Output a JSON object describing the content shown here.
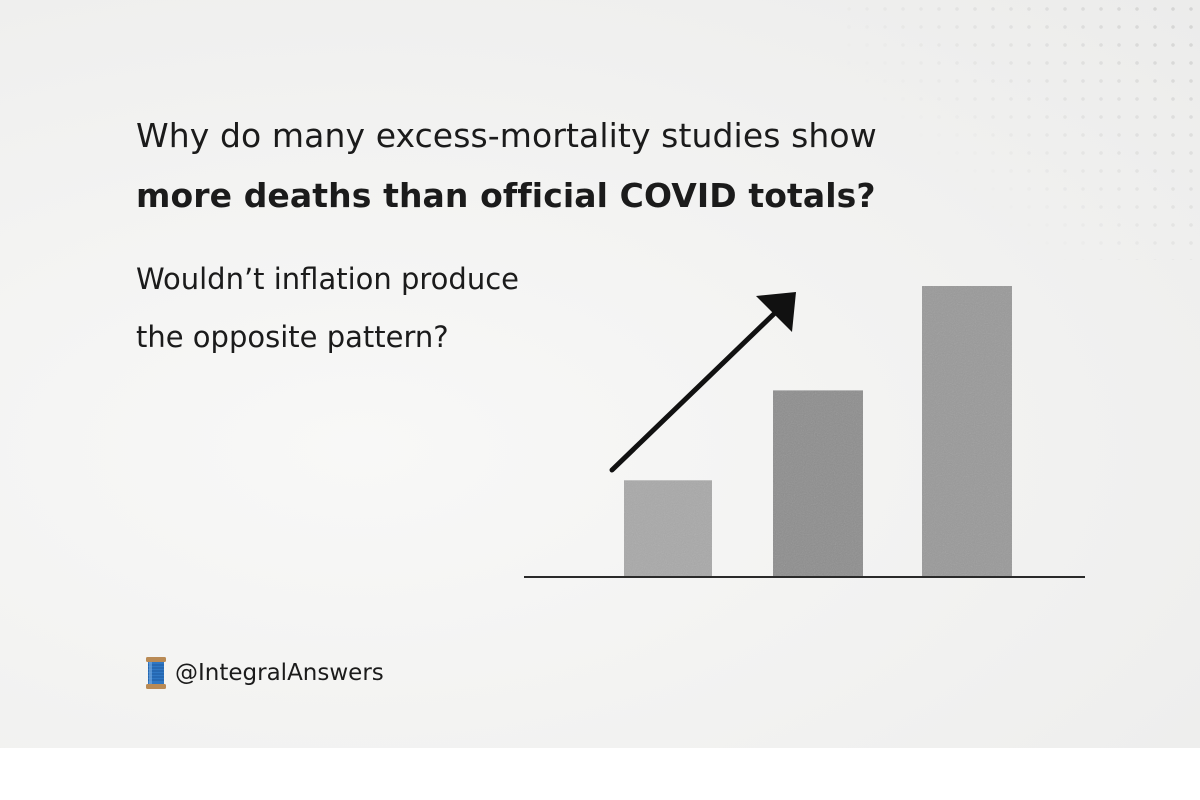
{
  "headline": {
    "line1": "Why do many excess-mortality studies show",
    "line2": "more deaths than official COVID totals?"
  },
  "question": {
    "line1": "Wouldn’t inflation produce",
    "line2": "the opposite pattern?"
  },
  "graphic": {
    "bars": [
      {
        "level": 0.33,
        "color": "#a9a9a9"
      },
      {
        "level": 0.64,
        "color": "#8e8e8e"
      },
      {
        "level": 1.0,
        "color": "#9a9a9a"
      }
    ],
    "trend_arrow_icon": "arrow-up-right-icon"
  },
  "footer": {
    "icon": "spool-of-thread-icon",
    "handle": "@IntegralAnswers"
  }
}
